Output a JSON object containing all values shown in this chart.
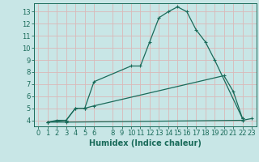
{
  "xlabel": "Humidex (Indice chaleur)",
  "bg_color": "#c8e6e6",
  "grid_color": "#dbb8b8",
  "line_color": "#1a6b5a",
  "xlim": [
    -0.5,
    23.5
  ],
  "ylim": [
    3.5,
    13.7
  ],
  "xticks": [
    0,
    1,
    2,
    3,
    4,
    5,
    6,
    8,
    9,
    10,
    11,
    12,
    13,
    14,
    15,
    16,
    17,
    18,
    19,
    20,
    21,
    22,
    23
  ],
  "yticks": [
    4,
    5,
    6,
    7,
    8,
    9,
    10,
    11,
    12,
    13
  ],
  "line1_x": [
    1,
    2,
    3,
    4,
    5,
    6,
    10,
    11,
    12,
    13,
    14,
    15,
    16,
    17,
    18,
    19,
    22
  ],
  "line1_y": [
    3.85,
    4.0,
    4.0,
    5.0,
    5.0,
    7.2,
    8.5,
    8.5,
    10.5,
    12.5,
    13.0,
    13.4,
    13.0,
    11.5,
    10.5,
    9.0,
    4.15
  ],
  "line2_x": [
    1,
    3,
    4,
    5,
    6,
    20,
    21,
    22
  ],
  "line2_y": [
    3.85,
    4.0,
    5.0,
    5.0,
    5.2,
    7.7,
    6.4,
    4.15
  ],
  "line3_x": [
    1,
    3,
    22,
    23
  ],
  "line3_y": [
    3.85,
    3.85,
    4.0,
    4.15
  ],
  "tick_fontsize": 6.0,
  "xlabel_fontsize": 7.0
}
